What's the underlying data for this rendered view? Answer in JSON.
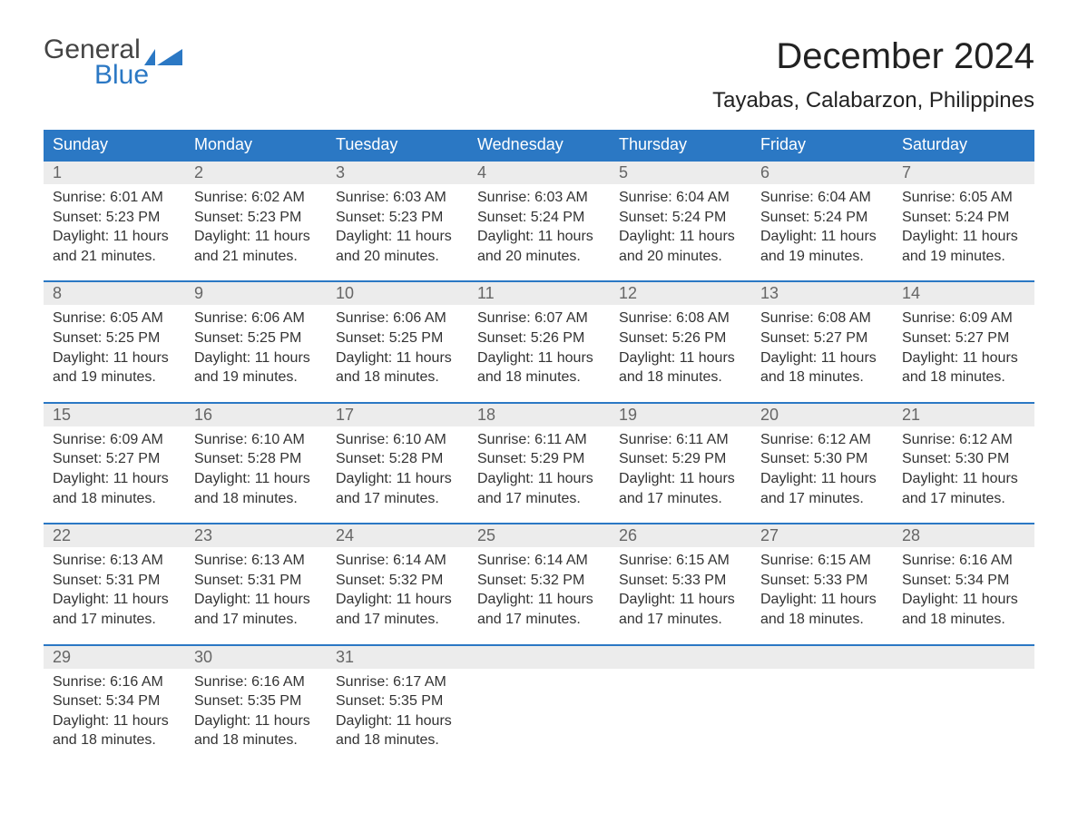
{
  "logo": {
    "top": "General",
    "bottom": "Blue",
    "icon_color": "#2b78c4",
    "text_color_top": "#444444",
    "text_color_bottom": "#2b78c4"
  },
  "title": "December 2024",
  "location": "Tayabas, Calabarzon, Philippines",
  "colors": {
    "header_bg": "#2b78c4",
    "header_text": "#ffffff",
    "date_row_bg": "#ececec",
    "date_row_border": "#2b78c4",
    "date_text": "#666666",
    "body_text": "#333333",
    "background": "#ffffff"
  },
  "day_names": [
    "Sunday",
    "Monday",
    "Tuesday",
    "Wednesday",
    "Thursday",
    "Friday",
    "Saturday"
  ],
  "weeks": [
    [
      {
        "date": "1",
        "sunrise": "Sunrise: 6:01 AM",
        "sunset": "Sunset: 5:23 PM",
        "daylight1": "Daylight: 11 hours",
        "daylight2": "and 21 minutes."
      },
      {
        "date": "2",
        "sunrise": "Sunrise: 6:02 AM",
        "sunset": "Sunset: 5:23 PM",
        "daylight1": "Daylight: 11 hours",
        "daylight2": "and 21 minutes."
      },
      {
        "date": "3",
        "sunrise": "Sunrise: 6:03 AM",
        "sunset": "Sunset: 5:23 PM",
        "daylight1": "Daylight: 11 hours",
        "daylight2": "and 20 minutes."
      },
      {
        "date": "4",
        "sunrise": "Sunrise: 6:03 AM",
        "sunset": "Sunset: 5:24 PM",
        "daylight1": "Daylight: 11 hours",
        "daylight2": "and 20 minutes."
      },
      {
        "date": "5",
        "sunrise": "Sunrise: 6:04 AM",
        "sunset": "Sunset: 5:24 PM",
        "daylight1": "Daylight: 11 hours",
        "daylight2": "and 20 minutes."
      },
      {
        "date": "6",
        "sunrise": "Sunrise: 6:04 AM",
        "sunset": "Sunset: 5:24 PM",
        "daylight1": "Daylight: 11 hours",
        "daylight2": "and 19 minutes."
      },
      {
        "date": "7",
        "sunrise": "Sunrise: 6:05 AM",
        "sunset": "Sunset: 5:24 PM",
        "daylight1": "Daylight: 11 hours",
        "daylight2": "and 19 minutes."
      }
    ],
    [
      {
        "date": "8",
        "sunrise": "Sunrise: 6:05 AM",
        "sunset": "Sunset: 5:25 PM",
        "daylight1": "Daylight: 11 hours",
        "daylight2": "and 19 minutes."
      },
      {
        "date": "9",
        "sunrise": "Sunrise: 6:06 AM",
        "sunset": "Sunset: 5:25 PM",
        "daylight1": "Daylight: 11 hours",
        "daylight2": "and 19 minutes."
      },
      {
        "date": "10",
        "sunrise": "Sunrise: 6:06 AM",
        "sunset": "Sunset: 5:25 PM",
        "daylight1": "Daylight: 11 hours",
        "daylight2": "and 18 minutes."
      },
      {
        "date": "11",
        "sunrise": "Sunrise: 6:07 AM",
        "sunset": "Sunset: 5:26 PM",
        "daylight1": "Daylight: 11 hours",
        "daylight2": "and 18 minutes."
      },
      {
        "date": "12",
        "sunrise": "Sunrise: 6:08 AM",
        "sunset": "Sunset: 5:26 PM",
        "daylight1": "Daylight: 11 hours",
        "daylight2": "and 18 minutes."
      },
      {
        "date": "13",
        "sunrise": "Sunrise: 6:08 AM",
        "sunset": "Sunset: 5:27 PM",
        "daylight1": "Daylight: 11 hours",
        "daylight2": "and 18 minutes."
      },
      {
        "date": "14",
        "sunrise": "Sunrise: 6:09 AM",
        "sunset": "Sunset: 5:27 PM",
        "daylight1": "Daylight: 11 hours",
        "daylight2": "and 18 minutes."
      }
    ],
    [
      {
        "date": "15",
        "sunrise": "Sunrise: 6:09 AM",
        "sunset": "Sunset: 5:27 PM",
        "daylight1": "Daylight: 11 hours",
        "daylight2": "and 18 minutes."
      },
      {
        "date": "16",
        "sunrise": "Sunrise: 6:10 AM",
        "sunset": "Sunset: 5:28 PM",
        "daylight1": "Daylight: 11 hours",
        "daylight2": "and 18 minutes."
      },
      {
        "date": "17",
        "sunrise": "Sunrise: 6:10 AM",
        "sunset": "Sunset: 5:28 PM",
        "daylight1": "Daylight: 11 hours",
        "daylight2": "and 17 minutes."
      },
      {
        "date": "18",
        "sunrise": "Sunrise: 6:11 AM",
        "sunset": "Sunset: 5:29 PM",
        "daylight1": "Daylight: 11 hours",
        "daylight2": "and 17 minutes."
      },
      {
        "date": "19",
        "sunrise": "Sunrise: 6:11 AM",
        "sunset": "Sunset: 5:29 PM",
        "daylight1": "Daylight: 11 hours",
        "daylight2": "and 17 minutes."
      },
      {
        "date": "20",
        "sunrise": "Sunrise: 6:12 AM",
        "sunset": "Sunset: 5:30 PM",
        "daylight1": "Daylight: 11 hours",
        "daylight2": "and 17 minutes."
      },
      {
        "date": "21",
        "sunrise": "Sunrise: 6:12 AM",
        "sunset": "Sunset: 5:30 PM",
        "daylight1": "Daylight: 11 hours",
        "daylight2": "and 17 minutes."
      }
    ],
    [
      {
        "date": "22",
        "sunrise": "Sunrise: 6:13 AM",
        "sunset": "Sunset: 5:31 PM",
        "daylight1": "Daylight: 11 hours",
        "daylight2": "and 17 minutes."
      },
      {
        "date": "23",
        "sunrise": "Sunrise: 6:13 AM",
        "sunset": "Sunset: 5:31 PM",
        "daylight1": "Daylight: 11 hours",
        "daylight2": "and 17 minutes."
      },
      {
        "date": "24",
        "sunrise": "Sunrise: 6:14 AM",
        "sunset": "Sunset: 5:32 PM",
        "daylight1": "Daylight: 11 hours",
        "daylight2": "and 17 minutes."
      },
      {
        "date": "25",
        "sunrise": "Sunrise: 6:14 AM",
        "sunset": "Sunset: 5:32 PM",
        "daylight1": "Daylight: 11 hours",
        "daylight2": "and 17 minutes."
      },
      {
        "date": "26",
        "sunrise": "Sunrise: 6:15 AM",
        "sunset": "Sunset: 5:33 PM",
        "daylight1": "Daylight: 11 hours",
        "daylight2": "and 17 minutes."
      },
      {
        "date": "27",
        "sunrise": "Sunrise: 6:15 AM",
        "sunset": "Sunset: 5:33 PM",
        "daylight1": "Daylight: 11 hours",
        "daylight2": "and 18 minutes."
      },
      {
        "date": "28",
        "sunrise": "Sunrise: 6:16 AM",
        "sunset": "Sunset: 5:34 PM",
        "daylight1": "Daylight: 11 hours",
        "daylight2": "and 18 minutes."
      }
    ],
    [
      {
        "date": "29",
        "sunrise": "Sunrise: 6:16 AM",
        "sunset": "Sunset: 5:34 PM",
        "daylight1": "Daylight: 11 hours",
        "daylight2": "and 18 minutes."
      },
      {
        "date": "30",
        "sunrise": "Sunrise: 6:16 AM",
        "sunset": "Sunset: 5:35 PM",
        "daylight1": "Daylight: 11 hours",
        "daylight2": "and 18 minutes."
      },
      {
        "date": "31",
        "sunrise": "Sunrise: 6:17 AM",
        "sunset": "Sunset: 5:35 PM",
        "daylight1": "Daylight: 11 hours",
        "daylight2": "and 18 minutes."
      },
      null,
      null,
      null,
      null
    ]
  ]
}
